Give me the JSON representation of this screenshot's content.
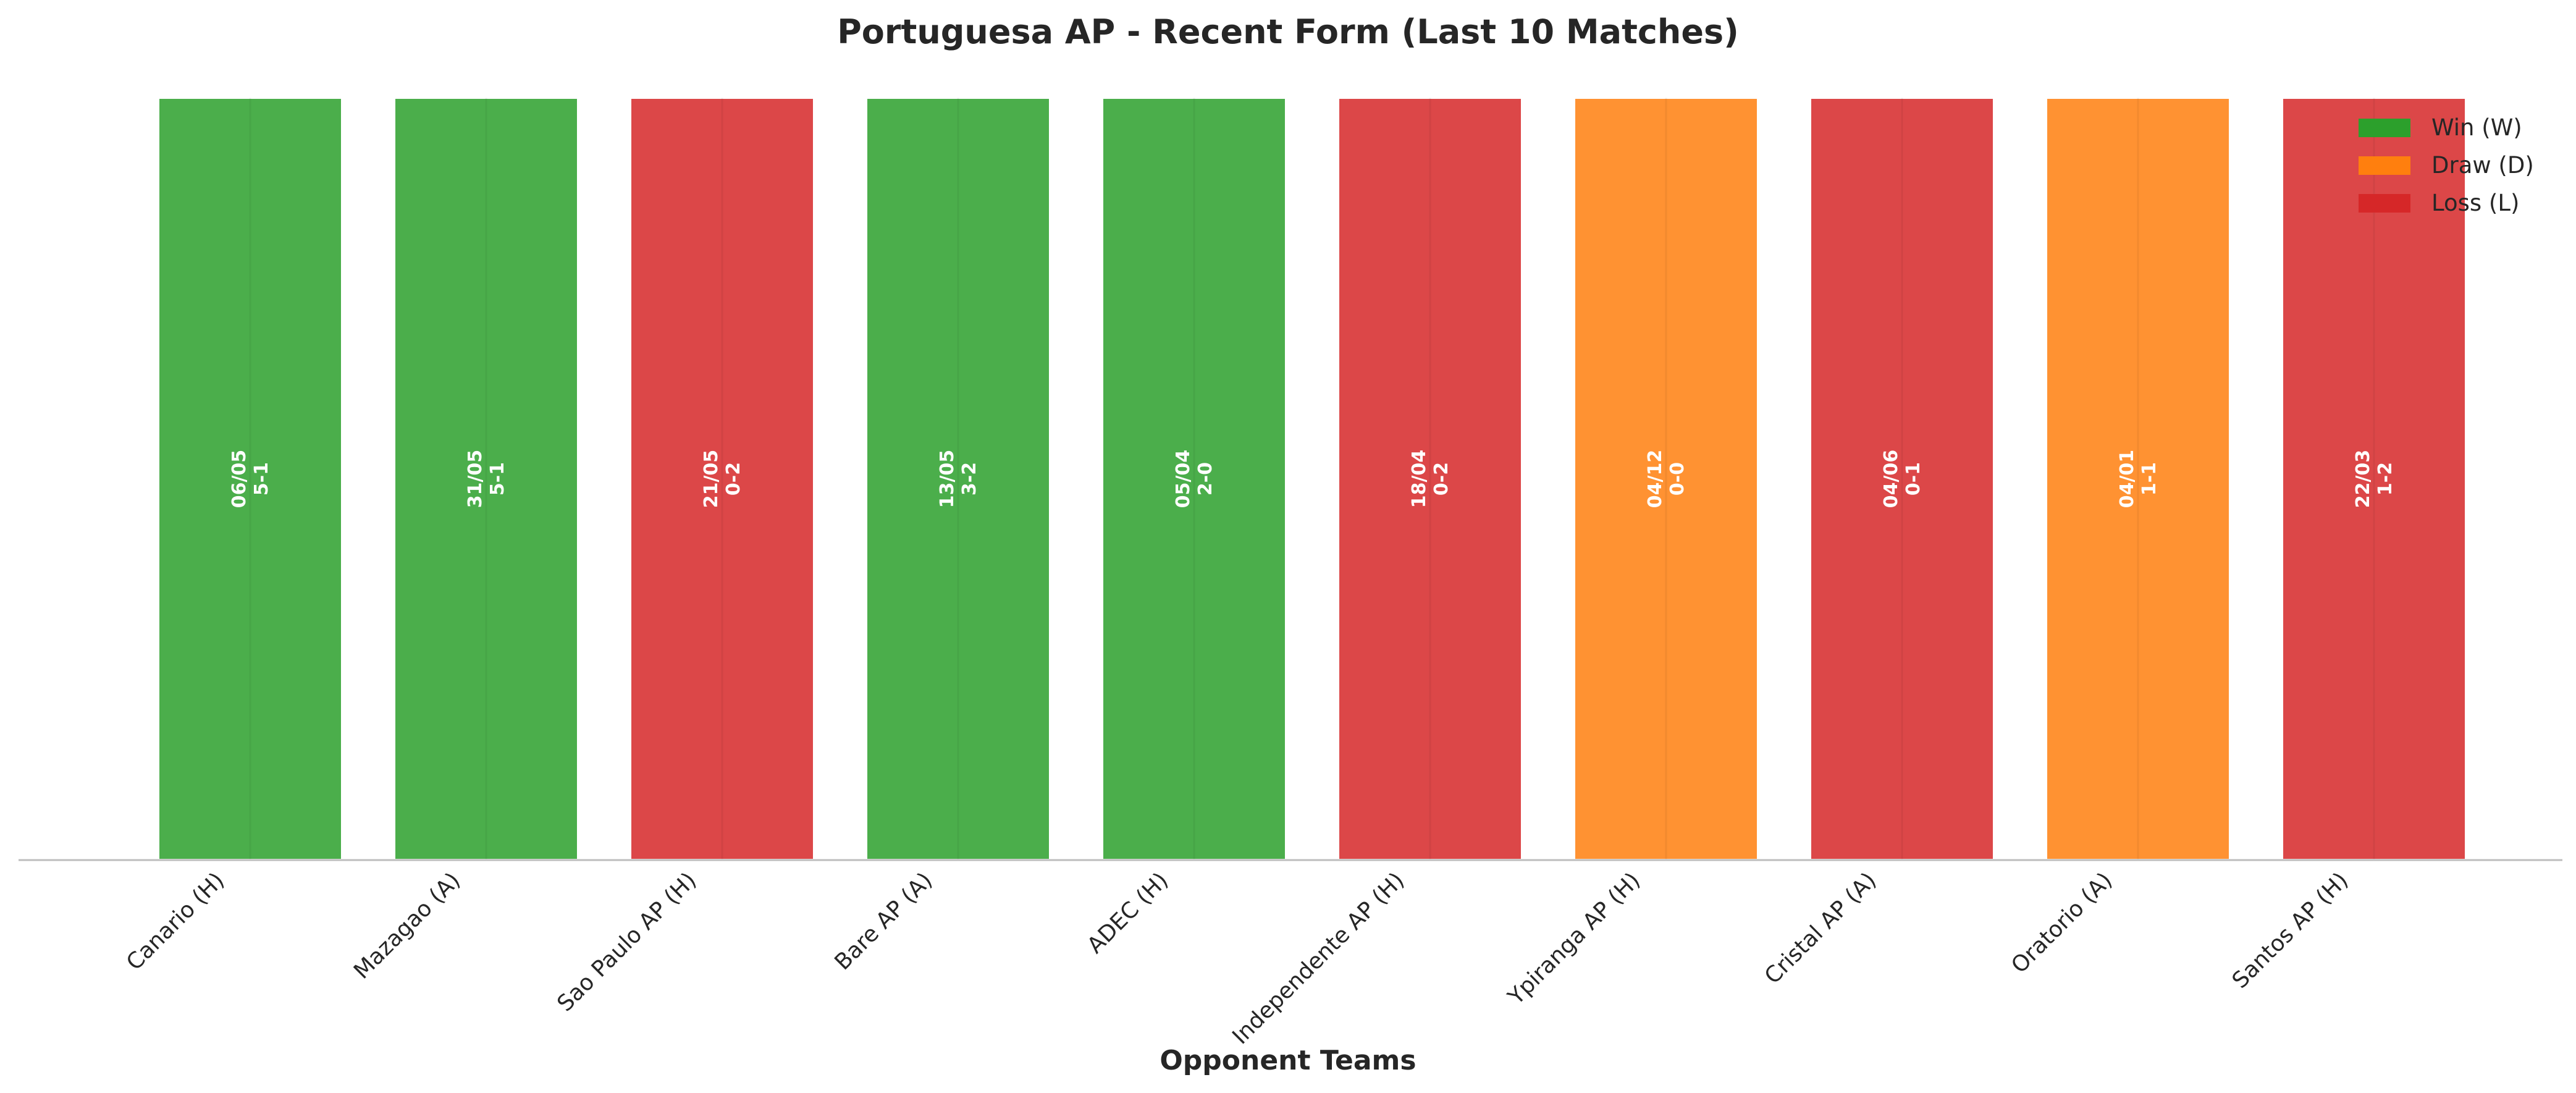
{
  "chart_data": {
    "type": "bar",
    "title": "Portuguesa AP - Recent Form (Last 10 Matches)",
    "xlabel": "Opponent Teams",
    "ylabel": "",
    "categories": [
      "Canario (H)",
      "Mazagao (A)",
      "Sao Paulo AP (H)",
      "Bare AP (A)",
      "ADEC (H)",
      "Independente AP (H)",
      "Ypiranga AP (H)",
      "Cristal AP (A)",
      "Oratorio (A)",
      "Santos AP (H)"
    ],
    "values": [
      1,
      1,
      1,
      1,
      1,
      1,
      1,
      1,
      1,
      1
    ],
    "ylim": [
      0,
      1
    ],
    "results": [
      "W",
      "W",
      "L",
      "W",
      "W",
      "L",
      "D",
      "L",
      "D",
      "L"
    ],
    "dates": [
      "06/05",
      "31/05",
      "21/05",
      "13/05",
      "05/04",
      "18/04",
      "04/12",
      "04/06",
      "04/01",
      "22/03"
    ],
    "scores": [
      "5-1",
      "5-1",
      "0-2",
      "3-2",
      "2-0",
      "0-2",
      "0-0",
      "0-1",
      "1-1",
      "1-2"
    ],
    "grid": false,
    "legend": {
      "placement": "top-right",
      "entries": [
        {
          "key": "W",
          "label": "Win (W)",
          "color": "#2ca02c"
        },
        {
          "key": "D",
          "label": "Draw (D)",
          "color": "#ff7f0e"
        },
        {
          "key": "L",
          "label": "Loss (L)",
          "color": "#d62728"
        }
      ]
    }
  }
}
